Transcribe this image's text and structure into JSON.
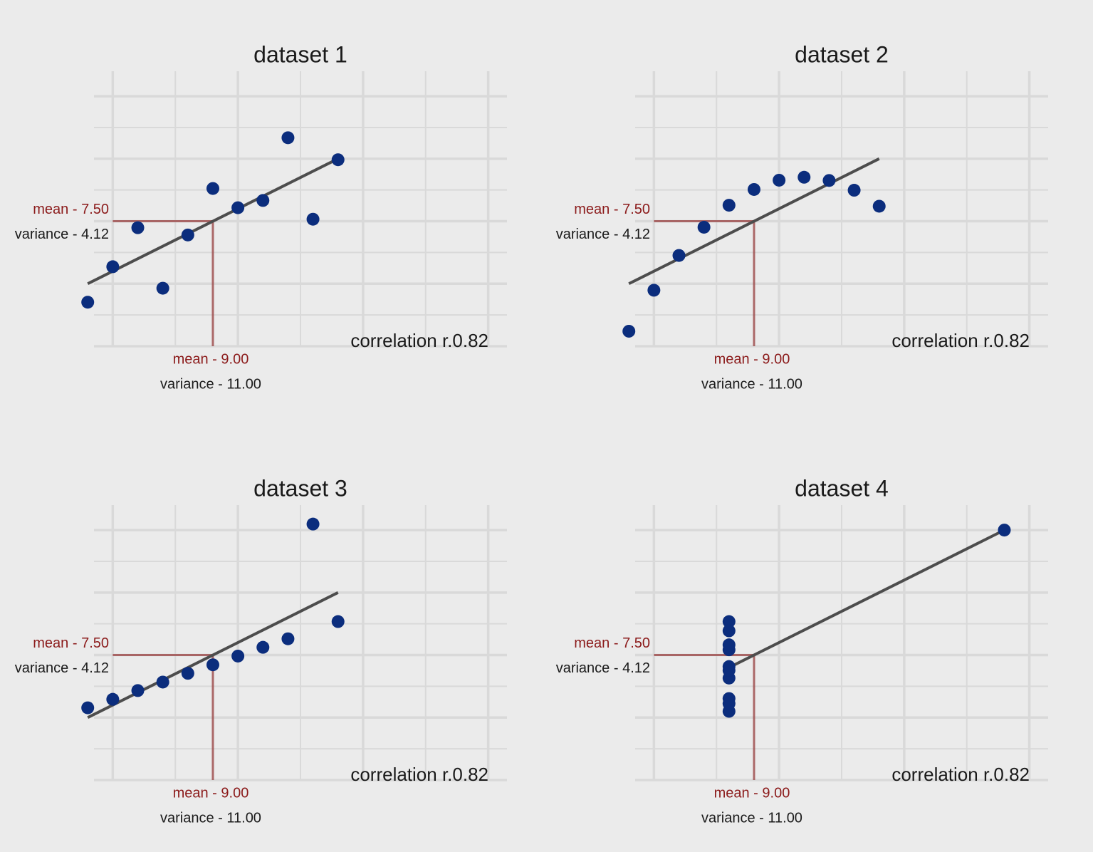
{
  "chart_data": [
    {
      "type": "scatter",
      "title": "dataset 1",
      "color": "#0b2d7d",
      "grid": true,
      "x": [
        10,
        8,
        13,
        9,
        11,
        14,
        6,
        4,
        12,
        7,
        5
      ],
      "values": [
        8.04,
        6.95,
        7.58,
        8.81,
        8.33,
        9.96,
        7.24,
        4.26,
        10.84,
        4.82,
        5.68
      ],
      "xlim": [
        4.25,
        20.75
      ],
      "ylim": [
        2.5,
        13.5
      ],
      "xticks": [
        5,
        7.5,
        10,
        12.5,
        15,
        17.5,
        20
      ],
      "yticks": [
        2.5,
        3.75,
        5,
        6.25,
        7.5,
        8.75,
        10,
        11.25,
        12.5
      ],
      "fit": {
        "intercept": 3,
        "slope": 0.5
      },
      "x_mean": {
        "value": 9,
        "label": "mean - 9.00"
      },
      "x_variance": "variance  - 11.00",
      "y_mean": {
        "value": 7.5,
        "label": "mean - 7.50"
      },
      "y_variance": "variance  - 4.12",
      "correlation": "correlation r.0.82"
    },
    {
      "type": "scatter",
      "title": "dataset 2",
      "color": "#0b2d7d",
      "grid": true,
      "x": [
        10,
        8,
        13,
        9,
        11,
        14,
        6,
        4,
        12,
        7,
        5
      ],
      "values": [
        9.14,
        8.14,
        8.74,
        8.77,
        9.26,
        8.1,
        6.13,
        3.1,
        9.13,
        7.26,
        4.74
      ],
      "xlim": [
        4.25,
        20.75
      ],
      "ylim": [
        2.5,
        13.5
      ],
      "xticks": [
        5,
        7.5,
        10,
        12.5,
        15,
        17.5,
        20
      ],
      "yticks": [
        2.5,
        3.75,
        5,
        6.25,
        7.5,
        8.75,
        10,
        11.25,
        12.5
      ],
      "fit": {
        "intercept": 3,
        "slope": 0.5
      },
      "x_mean": {
        "value": 9,
        "label": "mean - 9.00"
      },
      "x_variance": "variance  - 11.00",
      "y_mean": {
        "value": 7.5,
        "label": "mean - 7.50"
      },
      "y_variance": "variance  - 4.12",
      "correlation": "correlation r.0.82"
    },
    {
      "type": "scatter",
      "title": "dataset 3",
      "color": "#0b2d7d",
      "grid": true,
      "x": [
        10,
        8,
        13,
        9,
        11,
        14,
        6,
        4,
        12,
        7,
        5
      ],
      "values": [
        7.46,
        6.77,
        12.74,
        7.11,
        7.81,
        8.84,
        6.08,
        5.39,
        8.15,
        6.42,
        5.73
      ],
      "xlim": [
        4.25,
        20.75
      ],
      "ylim": [
        2.5,
        13.5
      ],
      "xticks": [
        5,
        7.5,
        10,
        12.5,
        15,
        17.5,
        20
      ],
      "yticks": [
        2.5,
        3.75,
        5,
        6.25,
        7.5,
        8.75,
        10,
        11.25,
        12.5
      ],
      "fit": {
        "intercept": 3,
        "slope": 0.5
      },
      "x_mean": {
        "value": 9,
        "label": "mean - 9.00"
      },
      "x_variance": "variance  - 11.00",
      "y_mean": {
        "value": 7.5,
        "label": "mean - 7.50"
      },
      "y_variance": "variance  - 4.12",
      "correlation": "correlation r.0.82"
    },
    {
      "type": "scatter",
      "title": "dataset 4",
      "color": "#0b2d7d",
      "grid": true,
      "x": [
        8,
        8,
        8,
        8,
        8,
        8,
        8,
        19,
        8,
        8,
        8
      ],
      "values": [
        6.58,
        5.76,
        7.71,
        8.84,
        8.47,
        7.04,
        5.25,
        12.5,
        5.56,
        7.91,
        6.89
      ],
      "xlim": [
        4.25,
        20.75
      ],
      "ylim": [
        2.5,
        13.5
      ],
      "xticks": [
        5,
        7.5,
        10,
        12.5,
        15,
        17.5,
        20
      ],
      "yticks": [
        2.5,
        3.75,
        5,
        6.25,
        7.5,
        8.75,
        10,
        11.25,
        12.5
      ],
      "fit": {
        "intercept": 3,
        "slope": 0.5
      },
      "x_mean": {
        "value": 9,
        "label": "mean - 9.00"
      },
      "x_variance": "variance  - 11.00",
      "y_mean": {
        "value": 7.5,
        "label": "mean - 7.50"
      },
      "y_variance": "variance  - 4.12",
      "correlation": "correlation r.0.82"
    }
  ]
}
